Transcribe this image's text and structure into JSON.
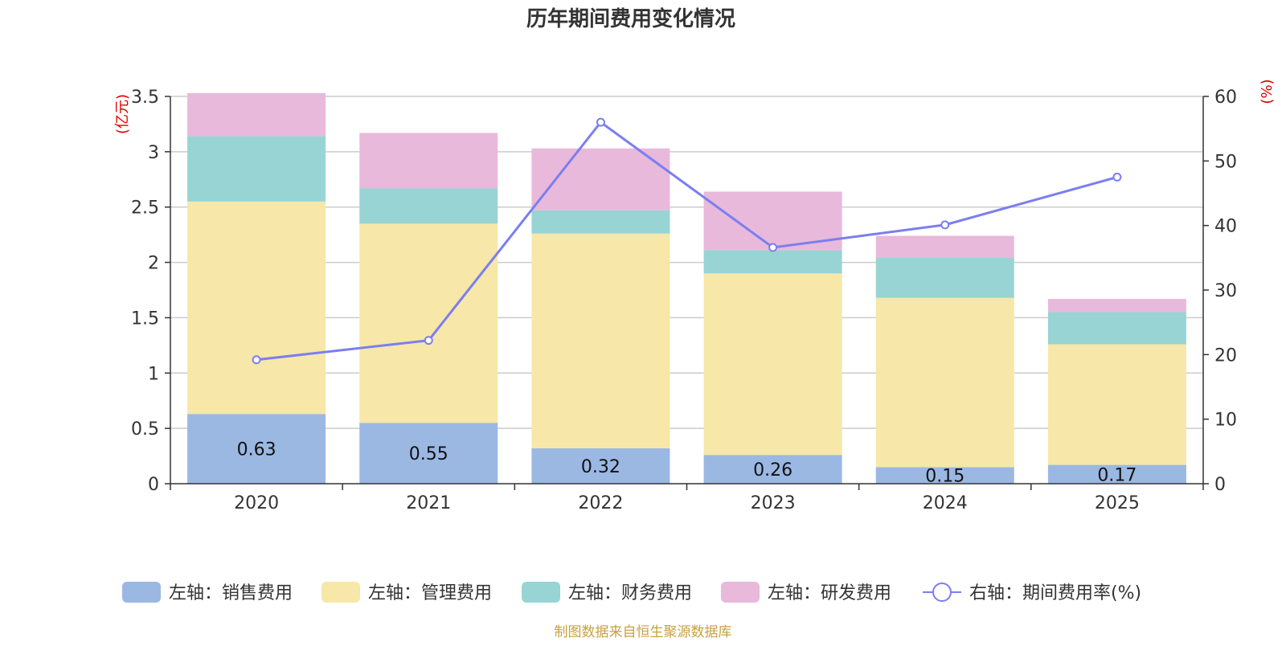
{
  "chart_data": {
    "type": "bar",
    "stacked": true,
    "title": "历年期间费用变化情况",
    "categories": [
      "2020",
      "2021",
      "2022",
      "2023",
      "2024",
      "2025"
    ],
    "y_left": {
      "unit": "(亿元)",
      "ylim": [
        0,
        3.5
      ],
      "ticks": [
        "0",
        "0.5",
        "1",
        "1.5",
        "2",
        "2.5",
        "3",
        "3.5"
      ]
    },
    "y_right": {
      "unit": "(%)",
      "ylim": [
        0,
        60
      ],
      "ticks": [
        "0",
        "10",
        "20",
        "30",
        "40",
        "50",
        "60"
      ]
    },
    "series": [
      {
        "name": "左轴：销售费用",
        "axis": "left",
        "color": "#9bb8e3",
        "values": [
          0.63,
          0.55,
          0.32,
          0.26,
          0.15,
          0.17
        ],
        "labels": [
          "0.63",
          "0.55",
          "0.32",
          "0.26",
          "0.15",
          "0.17"
        ]
      },
      {
        "name": "左轴：管理费用",
        "axis": "left",
        "color": "#f7e7a8",
        "values": [
          1.92,
          1.8,
          1.94,
          1.64,
          1.53,
          1.09
        ]
      },
      {
        "name": "左轴：财务费用",
        "axis": "left",
        "color": "#98d4d4",
        "values": [
          0.59,
          0.32,
          0.21,
          0.21,
          0.36,
          0.29
        ]
      },
      {
        "name": "左轴：研发费用",
        "axis": "left",
        "color": "#e8b9da",
        "values": [
          0.39,
          0.5,
          0.56,
          0.53,
          0.2,
          0.12
        ]
      },
      {
        "name": "右轴：期间费用率(%)",
        "axis": "right",
        "type": "line",
        "color": "#7b7ef0",
        "values": [
          19.2,
          22.2,
          56.0,
          36.6,
          40.1,
          47.5
        ]
      }
    ],
    "grid": true,
    "legend_position": "bottom"
  },
  "footer": {
    "source": "制图数据来自恒生聚源数据库"
  }
}
